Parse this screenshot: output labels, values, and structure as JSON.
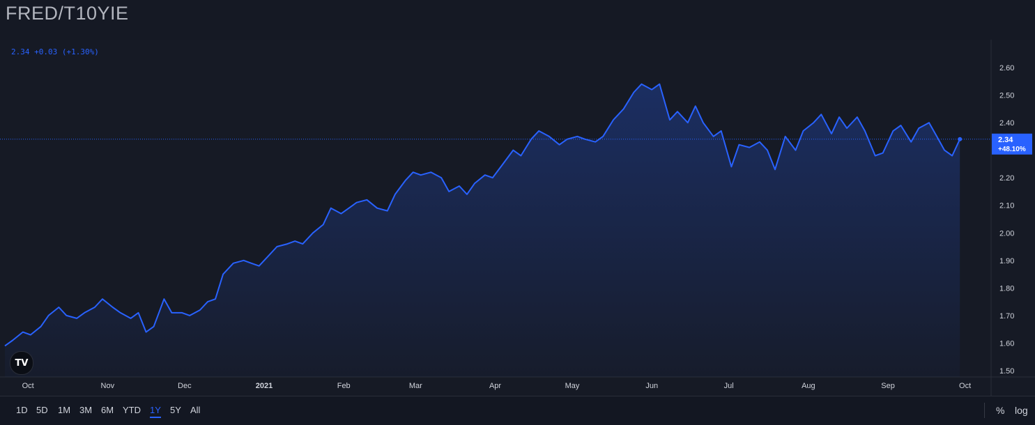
{
  "header": {
    "title": "FRED/T10YIE"
  },
  "legend": {
    "text": "2.34 +0.03 (+1.30%)"
  },
  "last_price": {
    "value": "2.34",
    "change": "+48.10%"
  },
  "logo": {
    "text": "TV"
  },
  "ranges": [
    {
      "label": "1D",
      "active": false
    },
    {
      "label": "5D",
      "active": false
    },
    {
      "label": "1M",
      "active": false
    },
    {
      "label": "3M",
      "active": false
    },
    {
      "label": "6M",
      "active": false
    },
    {
      "label": "YTD",
      "active": false
    },
    {
      "label": "1Y",
      "active": true
    },
    {
      "label": "5Y",
      "active": false
    },
    {
      "label": "All",
      "active": false
    }
  ],
  "options": {
    "percent": "%",
    "log": "log"
  },
  "colors": {
    "line": "#2962ff",
    "accent": "#2962ff",
    "text": "#d1d4dc",
    "background": "#131722"
  },
  "chart_data": {
    "type": "area",
    "title": "FRED/T10YIE",
    "y_ticks": [
      "2.60",
      "2.50",
      "2.40",
      "2.30",
      "2.20",
      "2.10",
      "2.00",
      "1.90",
      "1.80",
      "1.70",
      "1.60",
      "1.50"
    ],
    "ylim": [
      1.5,
      2.6
    ],
    "x_ticks": [
      "Oct",
      "Nov",
      "Dec",
      "2021",
      "Feb",
      "Mar",
      "Apr",
      "May",
      "Jun",
      "Jul",
      "Aug",
      "Sep",
      "Oct"
    ],
    "xlim": [
      "2020-09-22",
      "2021-10-06"
    ],
    "grid": false,
    "series": [
      {
        "values": [
          [
            "2020-09-22",
            1.59
          ],
          [
            "2020-09-25",
            1.61
          ],
          [
            "2020-09-29",
            1.64
          ],
          [
            "2020-10-02",
            1.63
          ],
          [
            "2020-10-06",
            1.66
          ],
          [
            "2020-10-09",
            1.7
          ],
          [
            "2020-10-13",
            1.73
          ],
          [
            "2020-10-16",
            1.7
          ],
          [
            "2020-10-20",
            1.69
          ],
          [
            "2020-10-23",
            1.71
          ],
          [
            "2020-10-27",
            1.73
          ],
          [
            "2020-10-30",
            1.76
          ],
          [
            "2020-11-03",
            1.73
          ],
          [
            "2020-11-06",
            1.71
          ],
          [
            "2020-11-10",
            1.69
          ],
          [
            "2020-11-13",
            1.71
          ],
          [
            "2020-11-16",
            1.64
          ],
          [
            "2020-11-19",
            1.66
          ],
          [
            "2020-11-23",
            1.76
          ],
          [
            "2020-11-26",
            1.71
          ],
          [
            "2020-11-30",
            1.71
          ],
          [
            "2020-12-03",
            1.7
          ],
          [
            "2020-12-07",
            1.72
          ],
          [
            "2020-12-10",
            1.75
          ],
          [
            "2020-12-13",
            1.76
          ],
          [
            "2020-12-16",
            1.85
          ],
          [
            "2020-12-20",
            1.89
          ],
          [
            "2020-12-24",
            1.9
          ],
          [
            "2020-12-27",
            1.89
          ],
          [
            "2020-12-30",
            1.88
          ],
          [
            "2021-01-03",
            1.92
          ],
          [
            "2021-01-06",
            1.95
          ],
          [
            "2021-01-10",
            1.96
          ],
          [
            "2021-01-13",
            1.97
          ],
          [
            "2021-01-16",
            1.96
          ],
          [
            "2021-01-20",
            2.0
          ],
          [
            "2021-01-24",
            2.03
          ],
          [
            "2021-01-27",
            2.09
          ],
          [
            "2021-01-31",
            2.07
          ],
          [
            "2021-02-03",
            2.09
          ],
          [
            "2021-02-06",
            2.11
          ],
          [
            "2021-02-10",
            2.12
          ],
          [
            "2021-02-14",
            2.09
          ],
          [
            "2021-02-18",
            2.08
          ],
          [
            "2021-02-21",
            2.14
          ],
          [
            "2021-02-25",
            2.19
          ],
          [
            "2021-02-28",
            2.22
          ],
          [
            "2021-03-03",
            2.21
          ],
          [
            "2021-03-07",
            2.22
          ],
          [
            "2021-03-11",
            2.2
          ],
          [
            "2021-03-14",
            2.15
          ],
          [
            "2021-03-18",
            2.17
          ],
          [
            "2021-03-21",
            2.14
          ],
          [
            "2021-03-24",
            2.18
          ],
          [
            "2021-03-28",
            2.21
          ],
          [
            "2021-03-31",
            2.2
          ],
          [
            "2021-04-04",
            2.25
          ],
          [
            "2021-04-08",
            2.3
          ],
          [
            "2021-04-11",
            2.28
          ],
          [
            "2021-04-15",
            2.34
          ],
          [
            "2021-04-18",
            2.37
          ],
          [
            "2021-04-22",
            2.35
          ],
          [
            "2021-04-26",
            2.32
          ],
          [
            "2021-04-29",
            2.34
          ],
          [
            "2021-05-03",
            2.35
          ],
          [
            "2021-05-06",
            2.34
          ],
          [
            "2021-05-10",
            2.33
          ],
          [
            "2021-05-13",
            2.35
          ],
          [
            "2021-05-17",
            2.41
          ],
          [
            "2021-05-21",
            2.45
          ],
          [
            "2021-05-25",
            2.51
          ],
          [
            "2021-05-28",
            2.54
          ],
          [
            "2021-06-01",
            2.52
          ],
          [
            "2021-06-04",
            2.54
          ],
          [
            "2021-06-08",
            2.41
          ],
          [
            "2021-06-11",
            2.44
          ],
          [
            "2021-06-15",
            2.4
          ],
          [
            "2021-06-18",
            2.46
          ],
          [
            "2021-06-21",
            2.4
          ],
          [
            "2021-06-25",
            2.35
          ],
          [
            "2021-06-28",
            2.37
          ],
          [
            "2021-07-02",
            2.24
          ],
          [
            "2021-07-05",
            2.32
          ],
          [
            "2021-07-09",
            2.31
          ],
          [
            "2021-07-13",
            2.33
          ],
          [
            "2021-07-16",
            2.3
          ],
          [
            "2021-07-19",
            2.23
          ],
          [
            "2021-07-23",
            2.35
          ],
          [
            "2021-07-27",
            2.3
          ],
          [
            "2021-07-30",
            2.37
          ],
          [
            "2021-08-03",
            2.4
          ],
          [
            "2021-08-06",
            2.43
          ],
          [
            "2021-08-10",
            2.36
          ],
          [
            "2021-08-13",
            2.42
          ],
          [
            "2021-08-16",
            2.38
          ],
          [
            "2021-08-20",
            2.42
          ],
          [
            "2021-08-23",
            2.37
          ],
          [
            "2021-08-27",
            2.28
          ],
          [
            "2021-08-30",
            2.29
          ],
          [
            "2021-09-03",
            2.37
          ],
          [
            "2021-09-06",
            2.39
          ],
          [
            "2021-09-10",
            2.33
          ],
          [
            "2021-09-13",
            2.38
          ],
          [
            "2021-09-17",
            2.4
          ],
          [
            "2021-09-20",
            2.35
          ],
          [
            "2021-09-23",
            2.3
          ],
          [
            "2021-09-26",
            2.28
          ],
          [
            "2021-09-29",
            2.34
          ]
        ]
      }
    ]
  }
}
